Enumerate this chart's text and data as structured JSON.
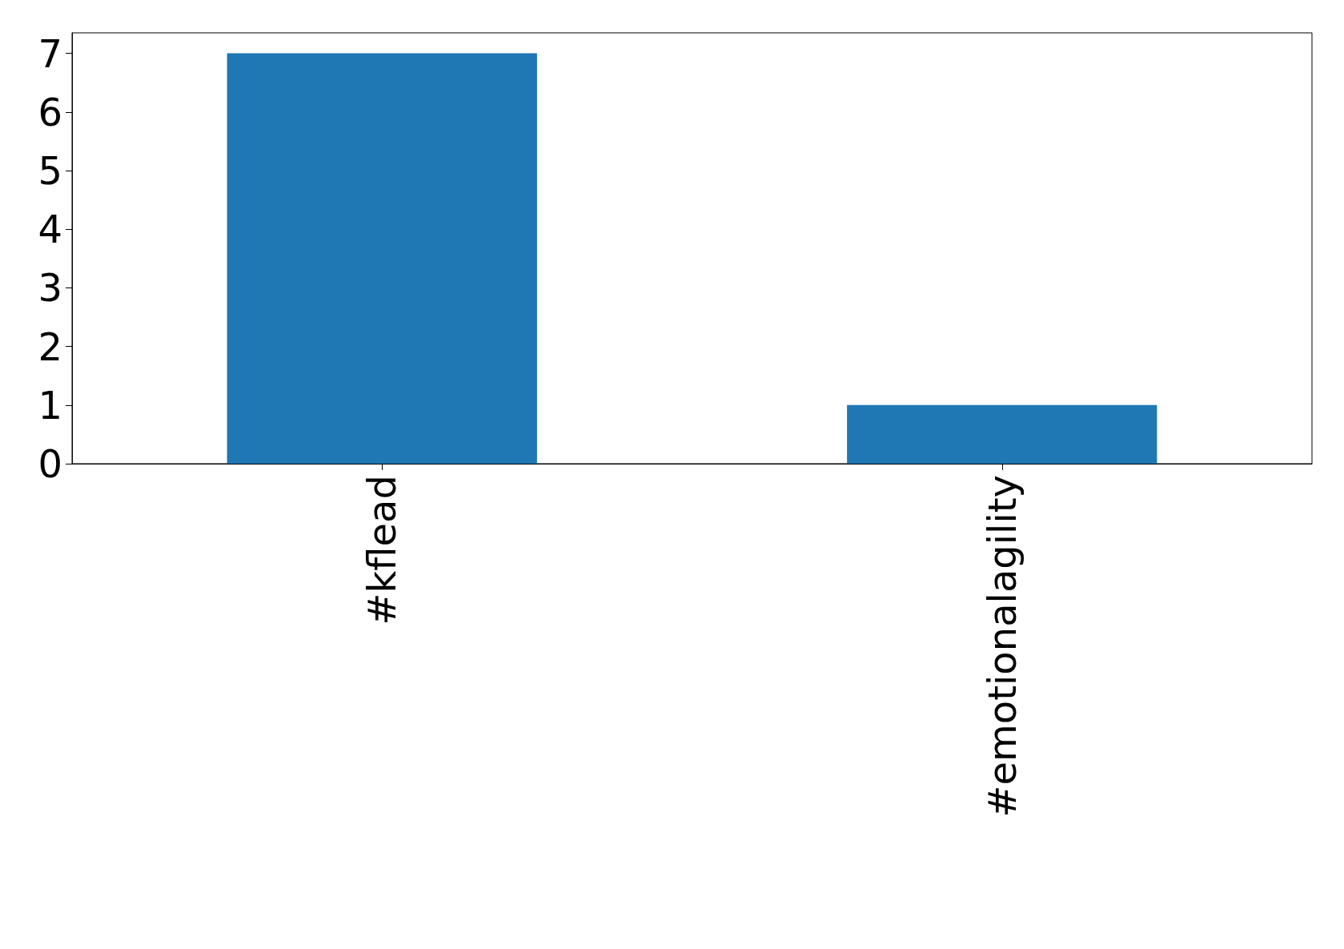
{
  "chart_data": {
    "type": "bar",
    "categories": [
      "#kflead",
      "#emotionalagility"
    ],
    "values": [
      7,
      1
    ],
    "color": "#1f77b4",
    "ylim": [
      0,
      7.35
    ],
    "yticks": [
      0,
      1,
      2,
      3,
      4,
      5,
      6,
      7
    ],
    "grid": false
  }
}
